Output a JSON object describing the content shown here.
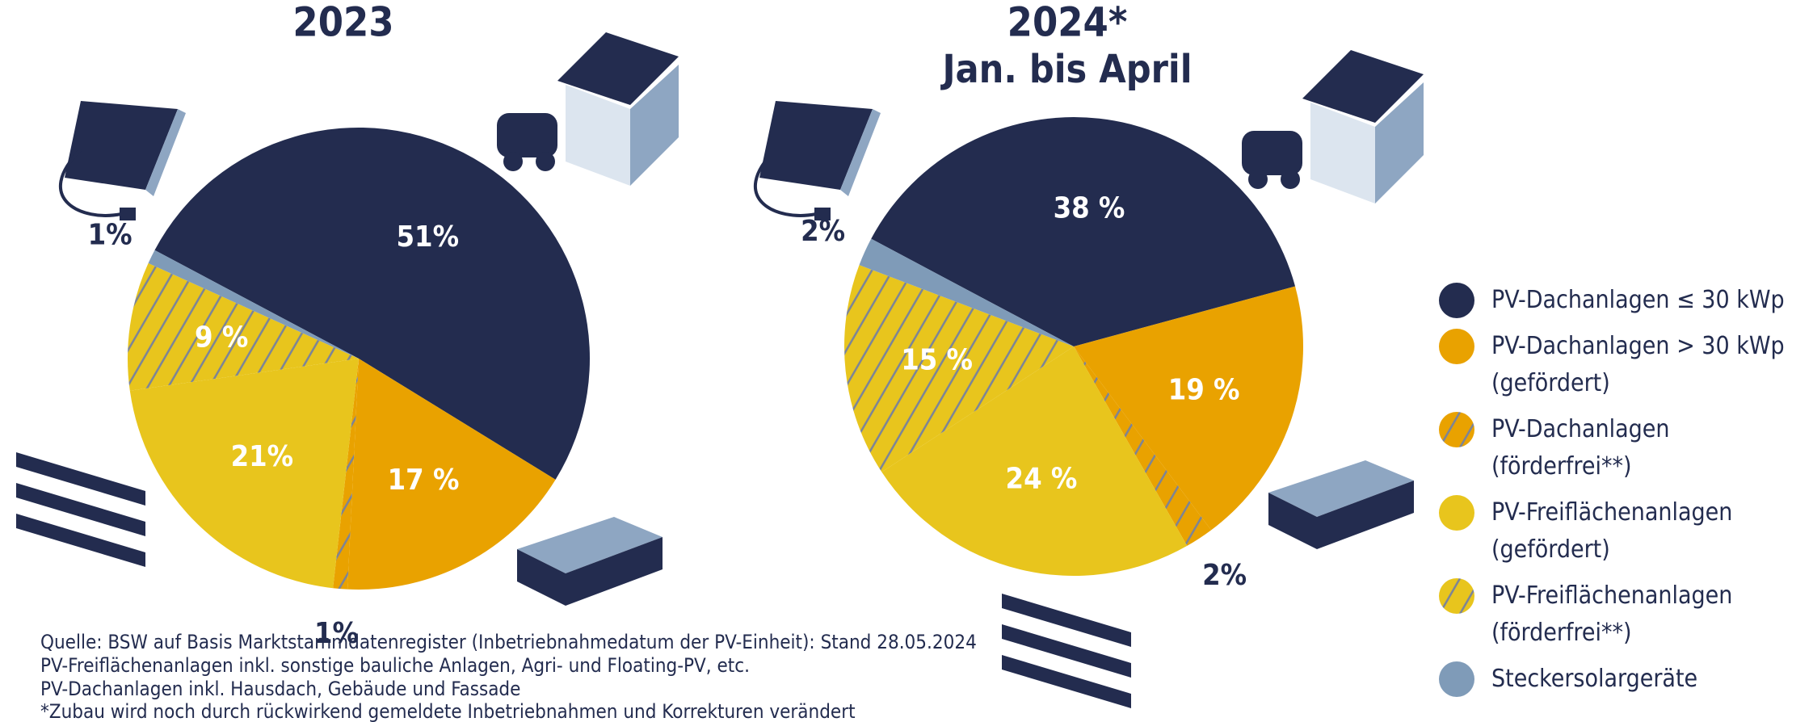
{
  "chart_data": [
    {
      "type": "pie",
      "title": "2023",
      "values": [
        51,
        17,
        1,
        21,
        9,
        1
      ],
      "value_labels": [
        "51%",
        "17 %",
        "1%",
        "21%",
        "9 %",
        "1%"
      ],
      "colors": [
        "#232c4f",
        "#e9a200",
        "#e9a200",
        "#e8c51d",
        "#e8c51d",
        "#7f9bb8"
      ],
      "hatch": [
        false,
        false,
        true,
        false,
        true,
        false
      ]
    },
    {
      "type": "pie",
      "title": "2024*",
      "subtitle": "Jan. bis April",
      "values": [
        38,
        19,
        2,
        24,
        15,
        2
      ],
      "value_labels": [
        "38 %",
        "19 %",
        "2%",
        "24 %",
        "15 %",
        "2%"
      ],
      "colors": [
        "#232c4f",
        "#e9a200",
        "#e9a200",
        "#e8c51d",
        "#e8c51d",
        "#7f9bb8"
      ],
      "hatch": [
        false,
        false,
        true,
        false,
        true,
        false
      ]
    }
  ],
  "legend": {
    "position": "right",
    "entries": [
      "PV-Dachanlagen ≤ 30 kWp",
      "PV-Dachanlagen > 30 kWp (gefördert)",
      "PV-Dachanlagen (förderfrei**)",
      "PV-Freiflächenanlagen (gefördert)",
      "PV-Freiflächenanlagen (förderfrei**)",
      "Steckersolargeräte"
    ]
  },
  "notes": [
    "Quelle: BSW auf Basis Marktstammdatenregister (Inbetriebnahmedatum der PV-Einheit): Stand 28.05.2024",
    "PV-Freiflächenanlagen inkl. sonstige bauliche Anlagen, Agri- und Floating-PV, etc.",
    "PV-Dachanlagen inkl. Hausdach, Gebäude und Fassade",
    "*Zubau wird noch durch rückwirkend gemeldete Inbetriebnahmen und Korrekturen verändert"
  ]
}
